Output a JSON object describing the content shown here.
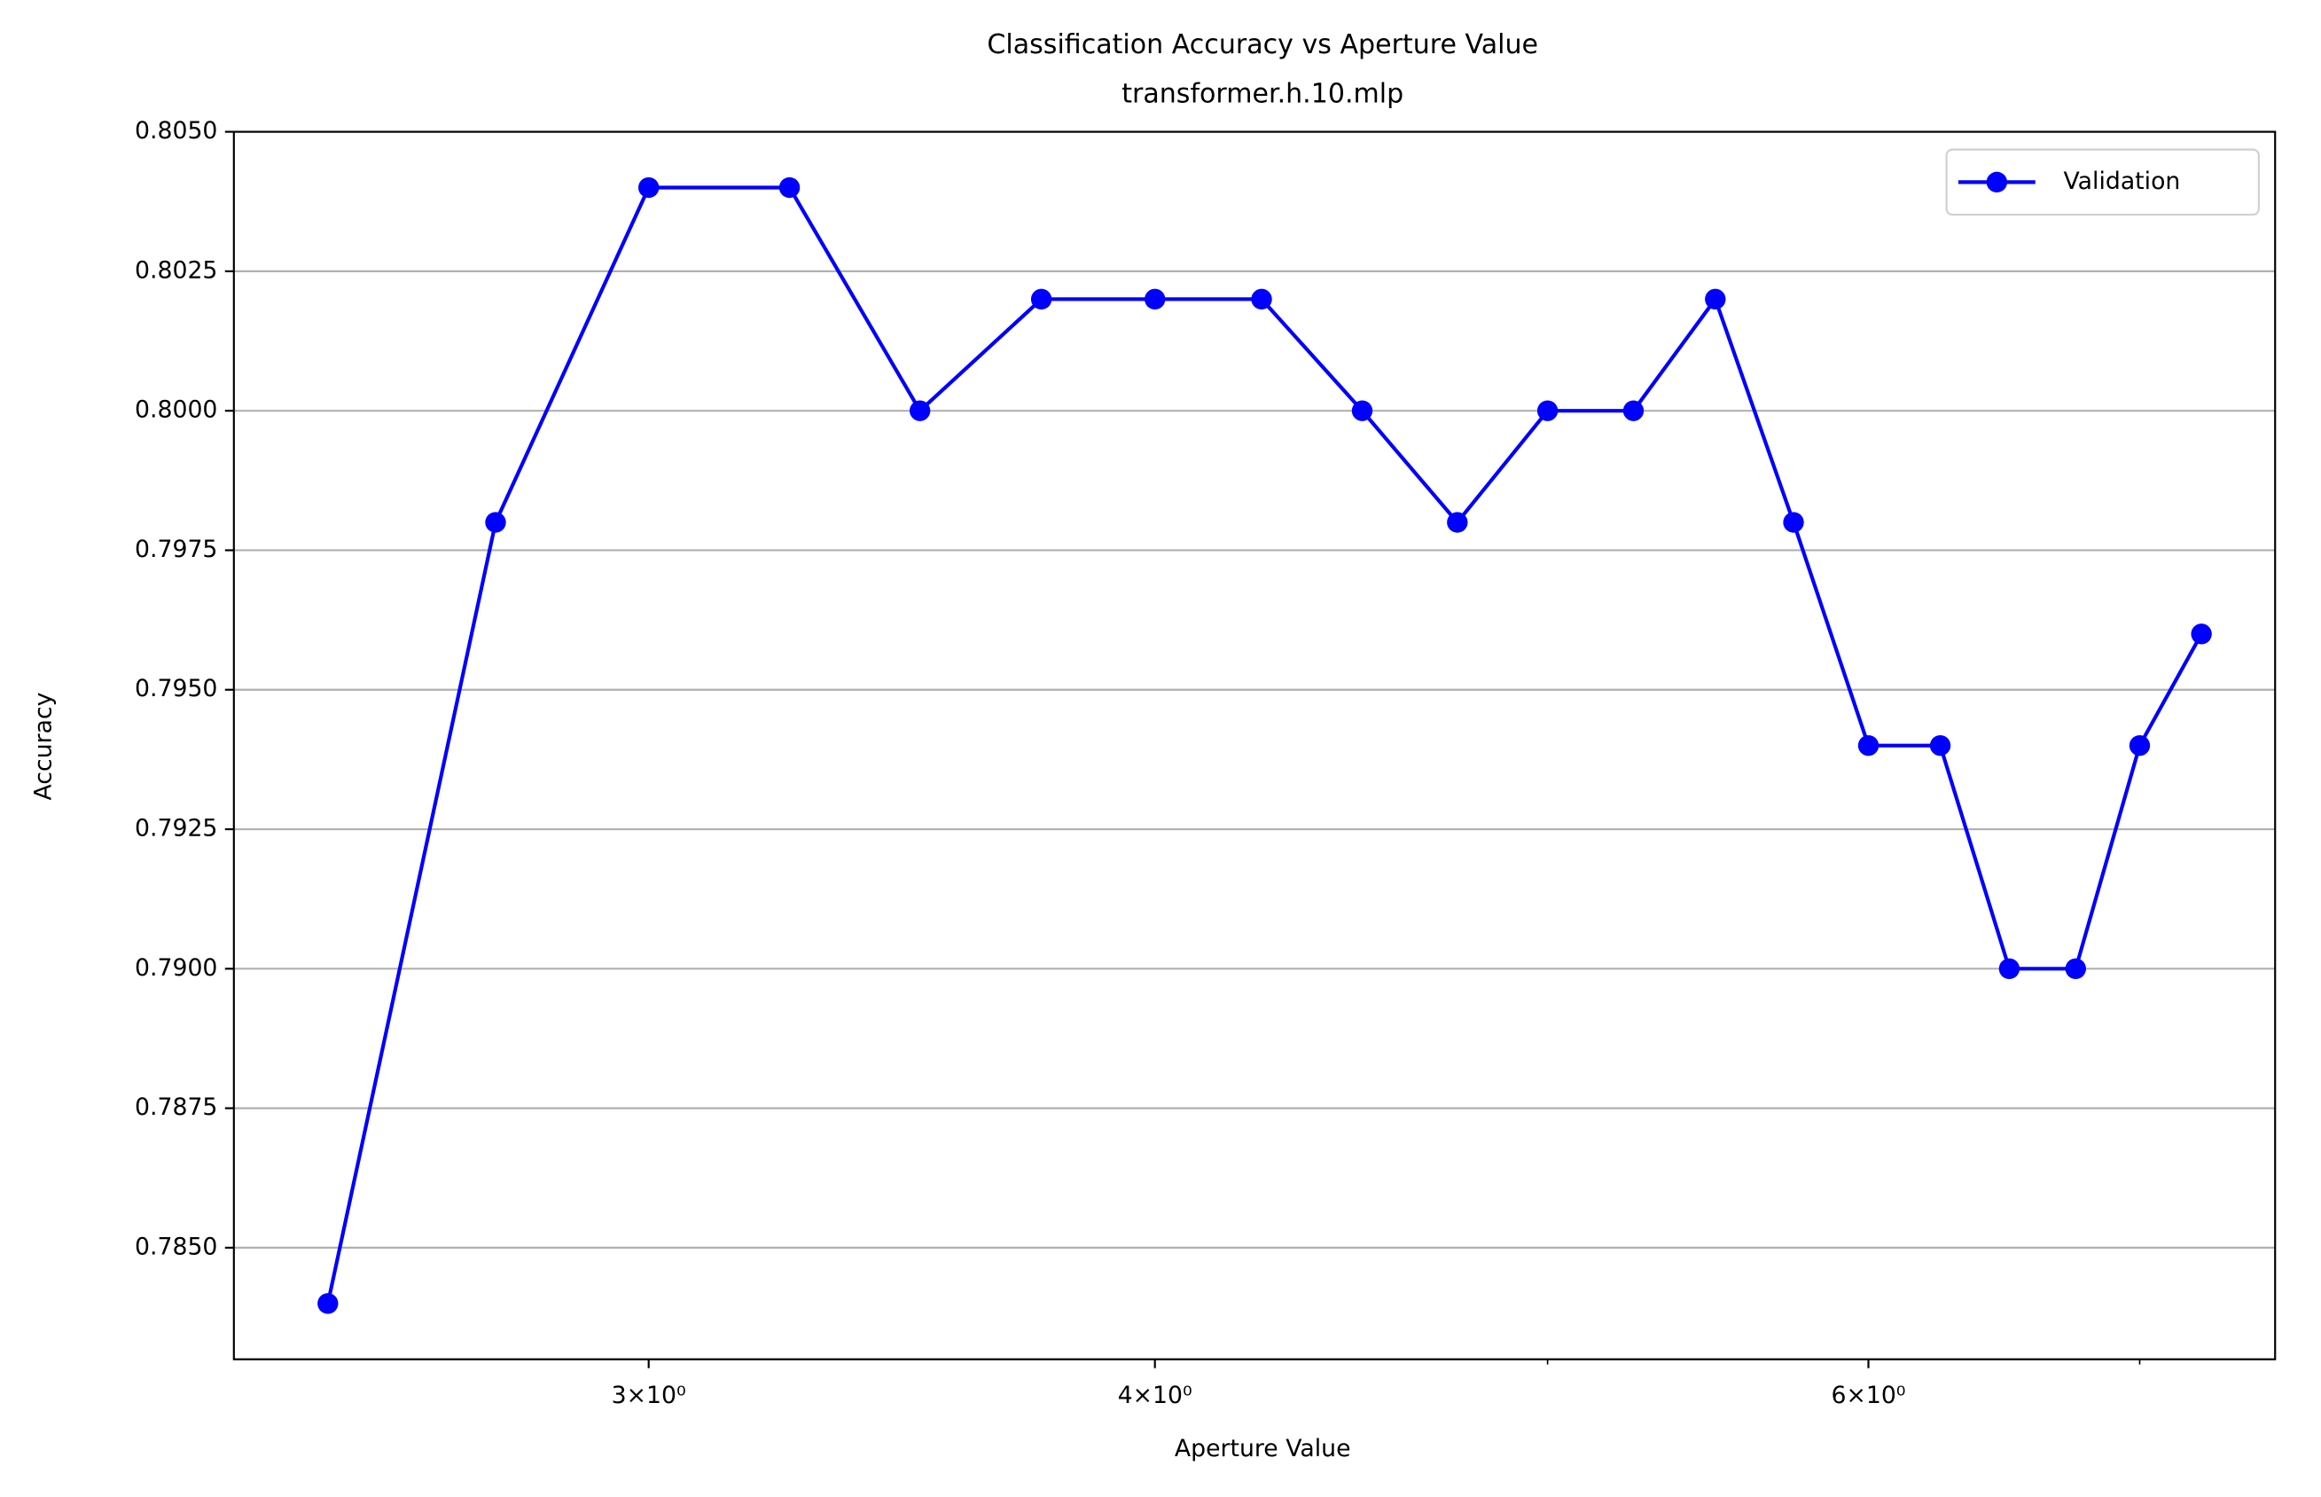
{
  "chart_data": {
    "type": "line",
    "title": "Classification Accuracy vs Aperture Value",
    "subtitle": "transformer.h.10.mlp",
    "x_label": "Aperture Value",
    "y_label": "Accuracy",
    "x_scale": "log",
    "x": [
      2.5,
      2.75,
      3.0,
      3.25,
      3.5,
      3.75,
      4.0,
      4.25,
      4.5,
      4.75,
      5.0,
      5.25,
      5.5,
      5.75,
      6.0,
      6.25,
      6.5,
      6.75,
      7.0,
      7.25
    ],
    "series": [
      {
        "name": "Validation",
        "color": "#0000ff",
        "values": [
          0.784,
          0.798,
          0.804,
          0.804,
          0.8,
          0.802,
          0.802,
          0.802,
          0.8,
          0.798,
          0.8,
          0.8,
          0.802,
          0.798,
          0.794,
          0.794,
          0.79,
          0.79,
          0.794,
          0.796
        ]
      }
    ],
    "xlim": [
      2.37,
      7.56
    ],
    "xticks": [
      {
        "value": 3,
        "label": "3×10⁰"
      },
      {
        "value": 4,
        "label": "4×10⁰"
      },
      {
        "value": 6,
        "label": "6×10⁰"
      }
    ],
    "xminor_ticks": [
      5,
      7
    ],
    "ylim": [
      0.783,
      0.805
    ],
    "yticks": [
      {
        "value": 0.785,
        "label": "0.7850"
      },
      {
        "value": 0.7875,
        "label": "0.7875"
      },
      {
        "value": 0.79,
        "label": "0.7900"
      },
      {
        "value": 0.7925,
        "label": "0.7925"
      },
      {
        "value": 0.795,
        "label": "0.7950"
      },
      {
        "value": 0.7975,
        "label": "0.7975"
      },
      {
        "value": 0.8,
        "label": "0.8000"
      },
      {
        "value": 0.8025,
        "label": "0.8025"
      },
      {
        "value": 0.805,
        "label": "0.8050"
      }
    ],
    "grid": "y",
    "legend": "upper right"
  }
}
